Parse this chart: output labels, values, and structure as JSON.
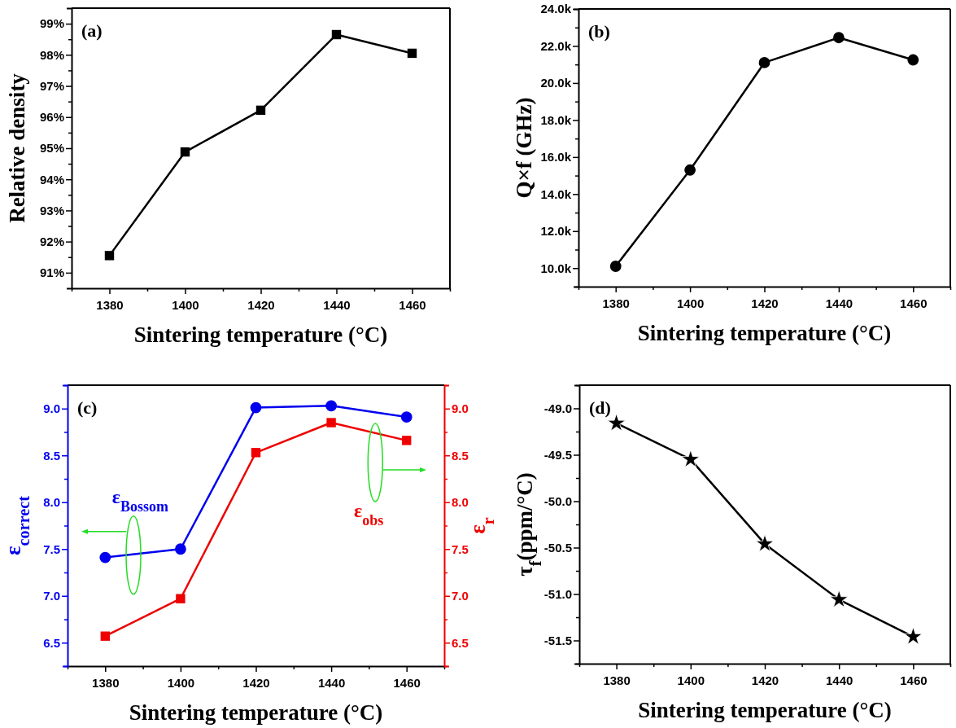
{
  "chart_data": [
    {
      "type": "line",
      "annotations": [
        "(a)"
      ],
      "xlabel": "Sintering temperature (°C)",
      "ylabel": "Relative density",
      "x": [
        1380,
        1400,
        1420,
        1440,
        1460
      ],
      "marker": "square",
      "series": [
        {
          "color": "#000000",
          "values": [
            91.55,
            94.88,
            96.22,
            98.65,
            98.05
          ]
        }
      ],
      "xlim": [
        1370,
        1470
      ],
      "xticks": [
        {
          "value": 1370,
          "label": null
        },
        1380,
        {
          "value": 1390,
          "label": null
        },
        1400,
        {
          "value": 1410,
          "label": null
        },
        1420,
        {
          "value": 1430,
          "label": null
        },
        1440,
        {
          "value": 1450,
          "label": null
        },
        1460,
        {
          "value": 1470,
          "label": null
        }
      ],
      "ylim": [
        90.5,
        99.5
      ],
      "yticks": [
        {
          "value": 91,
          "label": "91%"
        },
        {
          "value": 91.5,
          "label": null
        },
        {
          "value": 92,
          "label": "92%"
        },
        {
          "value": 92.5,
          "label": null
        },
        {
          "value": 93,
          "label": "93%"
        },
        {
          "value": 93.5,
          "label": null
        },
        {
          "value": 94,
          "label": "94%"
        },
        {
          "value": 94.5,
          "label": null
        },
        {
          "value": 95,
          "label": "95%"
        },
        {
          "value": 95.5,
          "label": null
        },
        {
          "value": 96,
          "label": "96%"
        },
        {
          "value": 96.5,
          "label": null
        },
        {
          "value": 97,
          "label": "97%"
        },
        {
          "value": 97.5,
          "label": null
        },
        {
          "value": 98,
          "label": "98%"
        },
        {
          "value": 98.5,
          "label": null
        },
        {
          "value": 99,
          "label": "99%"
        }
      ],
      "grid": false
    },
    {
      "type": "line",
      "annotations": [
        "(b)"
      ],
      "xlabel": "Sintering temperature (°C)",
      "ylabel": "Q×f (GHz)",
      "x": [
        1380,
        1400,
        1420,
        1440,
        1460
      ],
      "marker": "circle",
      "series": [
        {
          "color": "#000000",
          "values": [
            10100,
            15300,
            21100,
            22450,
            21250
          ]
        }
      ],
      "xlim": [
        1370,
        1470
      ],
      "xticks": [
        {
          "value": 1370,
          "label": null
        },
        1380,
        {
          "value": 1390,
          "label": null
        },
        1400,
        {
          "value": 1410,
          "label": null
        },
        1420,
        {
          "value": 1430,
          "label": null
        },
        1440,
        {
          "value": 1450,
          "label": null
        },
        1460,
        {
          "value": 1470,
          "label": null
        }
      ],
      "ylim": [
        9000,
        24000
      ],
      "yticks": [
        {
          "value": 9000,
          "label": null
        },
        {
          "value": 10000,
          "label": "10.0k"
        },
        {
          "value": 11000,
          "label": null
        },
        {
          "value": 12000,
          "label": "12.0k"
        },
        {
          "value": 13000,
          "label": null
        },
        {
          "value": 14000,
          "label": "14.0k"
        },
        {
          "value": 15000,
          "label": null
        },
        {
          "value": 16000,
          "label": "16.0k"
        },
        {
          "value": 17000,
          "label": null
        },
        {
          "value": 18000,
          "label": "18.0k"
        },
        {
          "value": 19000,
          "label": null
        },
        {
          "value": 20000,
          "label": "20.0k"
        },
        {
          "value": 21000,
          "label": null
        },
        {
          "value": 22000,
          "label": "22.0k"
        },
        {
          "value": 23000,
          "label": null
        },
        {
          "value": 24000,
          "label": "24.0k"
        }
      ],
      "grid": false
    },
    {
      "type": "line",
      "annotations": [
        "(c)"
      ],
      "xlabel": "Sintering temperature (°C)",
      "ylabel": "ε$_{correct}$",
      "y2label": "ε$_{r}$",
      "x": [
        1380,
        1400,
        1420,
        1440,
        1460
      ],
      "series": [
        {
          "name": "ε$_{Bossom}$",
          "color": "#0000ee",
          "marker": "circle",
          "values": [
            7.41,
            7.5,
            9.01,
            9.03,
            8.91
          ]
        },
        {
          "name": "ε$_{obs}$",
          "color": "#ee0000",
          "marker": "square",
          "axis": "y2",
          "values": [
            6.57,
            6.97,
            8.53,
            8.85,
            8.66
          ]
        }
      ],
      "xlim": [
        1370,
        1470
      ],
      "xticks": [
        {
          "value": 1370,
          "label": null
        },
        1380,
        {
          "value": 1390,
          "label": null
        },
        1400,
        {
          "value": 1410,
          "label": null
        },
        1420,
        {
          "value": 1430,
          "label": null
        },
        1440,
        {
          "value": 1450,
          "label": null
        },
        1460,
        {
          "value": 1470,
          "label": null
        }
      ],
      "ylim": [
        6.25,
        9.25
      ],
      "yticks": [
        {
          "value": 6.25,
          "label": null
        },
        6.5,
        {
          "value": 6.75,
          "label": null
        },
        {
          "value": 7,
          "label": "7.0"
        },
        {
          "value": 7.25,
          "label": null
        },
        7.5,
        {
          "value": 7.75,
          "label": null
        },
        {
          "value": 8,
          "label": "8.0"
        },
        {
          "value": 8.25,
          "label": null
        },
        8.5,
        {
          "value": 8.75,
          "label": null
        },
        {
          "value": 9,
          "label": "9.0"
        },
        {
          "value": 9.25,
          "label": null
        }
      ],
      "y2lim": [
        6.25,
        9.25
      ],
      "y2ticks": [
        {
          "value": 6.25,
          "label": null
        },
        6.5,
        {
          "value": 6.75,
          "label": null
        },
        {
          "value": 7,
          "label": "7.0"
        },
        {
          "value": 7.25,
          "label": null
        },
        7.5,
        {
          "value": 7.75,
          "label": null
        },
        {
          "value": 8,
          "label": "8.0"
        },
        {
          "value": 8.25,
          "label": null
        },
        8.5,
        {
          "value": 8.75,
          "label": null
        },
        {
          "value": 9,
          "label": "9.0"
        },
        {
          "value": 9.25,
          "label": null
        }
      ],
      "grid": false
    },
    {
      "type": "line",
      "annotations": [
        "(d)"
      ],
      "xlabel": "Sintering temperature (°C)",
      "ylabel": "τ$_{f}$(ppm/°C)",
      "x": [
        1380,
        1400,
        1420,
        1440,
        1460
      ],
      "marker": "star",
      "series": [
        {
          "color": "#000000",
          "values": [
            -49.16,
            -49.55,
            -50.46,
            -51.06,
            -51.46
          ]
        }
      ],
      "xlim": [
        1370,
        1470
      ],
      "xticks": [
        {
          "value": 1370,
          "label": null
        },
        1380,
        {
          "value": 1390,
          "label": null
        },
        1400,
        {
          "value": 1410,
          "label": null
        },
        1420,
        {
          "value": 1430,
          "label": null
        },
        1440,
        {
          "value": 1450,
          "label": null
        },
        1460,
        {
          "value": 1470,
          "label": null
        }
      ],
      "ylim": [
        -51.75,
        -48.75
      ],
      "yticks": [
        {
          "value": -51.75,
          "label": null
        },
        -51.5,
        {
          "value": -51.25,
          "label": null
        },
        {
          "value": -51,
          "label": "-51.0"
        },
        {
          "value": -50.75,
          "label": null
        },
        -50.5,
        {
          "value": -50.25,
          "label": null
        },
        {
          "value": -50,
          "label": "-50.0"
        },
        {
          "value": -49.75,
          "label": null
        },
        -49.5,
        {
          "value": -49.25,
          "label": null
        },
        {
          "value": -49,
          "label": "-49.0"
        },
        {
          "value": -48.75,
          "label": null
        }
      ],
      "grid": false
    }
  ]
}
